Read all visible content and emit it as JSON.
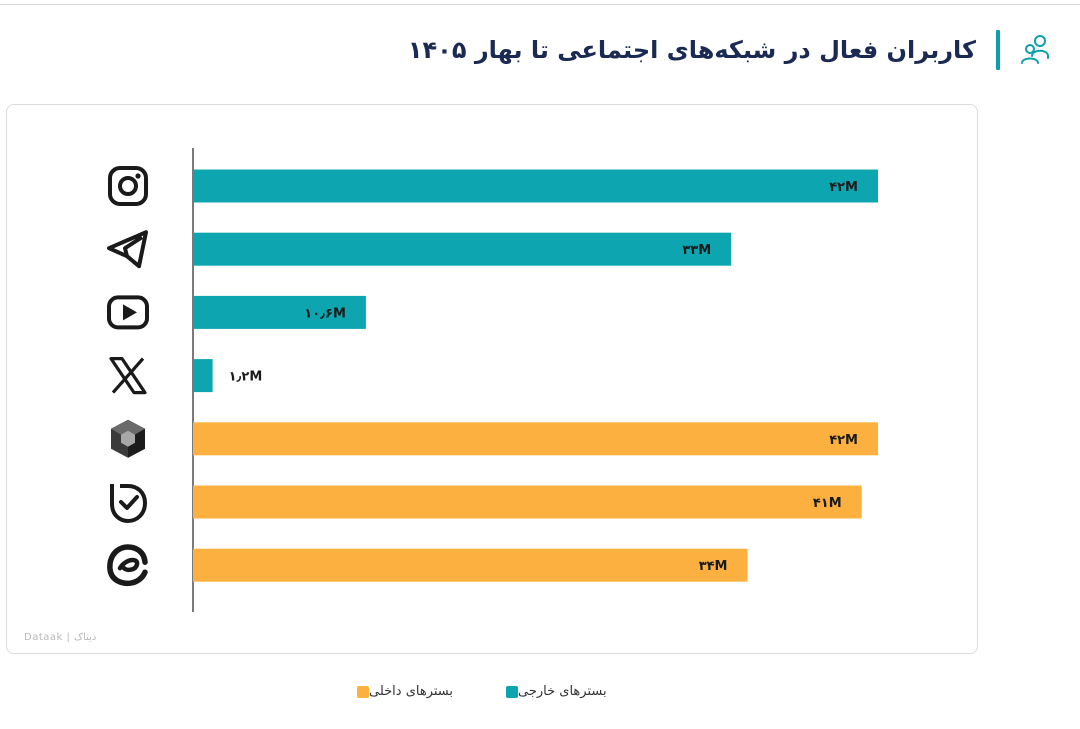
{
  "header": {
    "title": "کاربران فعال در شبکه‌های اجتماعی تا بهار ۱۴۰۵",
    "icon": "users-icon"
  },
  "colors": {
    "foreign": "#0ca5b0",
    "domestic": "#fbb040",
    "axis": "#333333",
    "title_accent": "#0e9fad"
  },
  "watermark": "Dataak | دیتاک",
  "chart_data": {
    "type": "bar",
    "orientation": "horizontal",
    "categories": [
      "instagram",
      "telegram",
      "youtube",
      "x",
      "rubika",
      "bale",
      "eitaa"
    ],
    "icons": [
      "instagram-icon",
      "telegram-icon",
      "youtube-icon",
      "x-icon",
      "rubika-icon",
      "bale-icon",
      "eitaa-icon"
    ],
    "values": [
      42,
      33,
      10.6,
      1.2,
      42,
      41,
      34
    ],
    "value_labels": [
      "۴۲M",
      "۳۳M",
      "۱۰٫۶M",
      "۱٫۲M",
      "۴۲M",
      "۴۱M",
      "۳۴M"
    ],
    "groups": [
      "foreign",
      "foreign",
      "foreign",
      "foreign",
      "domestic",
      "domestic",
      "domestic"
    ],
    "unit": "M",
    "xlim": [
      0,
      42
    ],
    "grid": false,
    "legend_position": "bottom-center",
    "legend": [
      {
        "key": "foreign",
        "label": "بسترهای خارجی",
        "color": "#0ca5b0"
      },
      {
        "key": "domestic",
        "label": "بسترهای داخلی",
        "color": "#fbb040"
      }
    ]
  }
}
